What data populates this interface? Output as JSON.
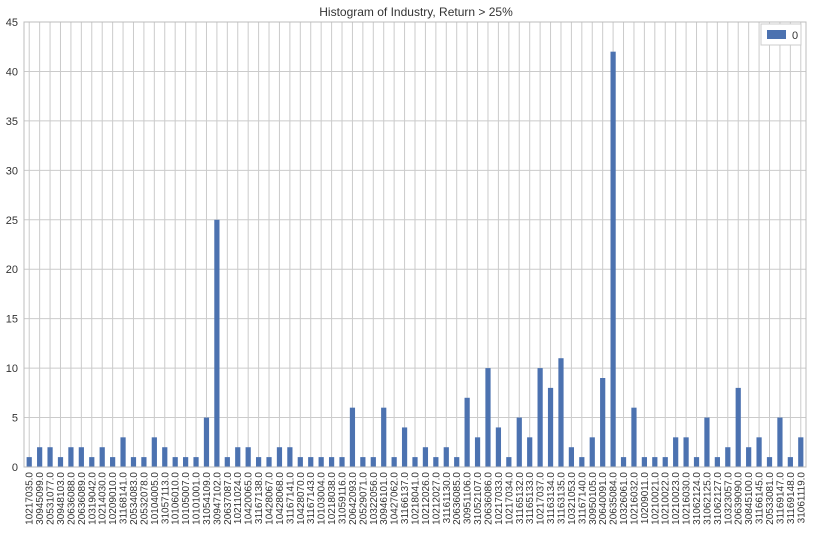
{
  "chart_data": {
    "type": "bar",
    "title": "Histogram of Industry, Return > 25%",
    "xlabel": "",
    "ylabel": "",
    "ylim": [
      0,
      45
    ],
    "yticks": [
      0,
      5,
      10,
      15,
      20,
      25,
      30,
      35,
      40,
      45
    ],
    "grid": true,
    "legend_position": "top-right",
    "categories": [
      "10217035.0",
      "30945099.0",
      "20531077.0",
      "30948103.0",
      "20636088.0",
      "20636089.0",
      "10319042.0",
      "10214030.0",
      "10209010.0",
      "31168141.0",
      "20534083.0",
      "20532078.0",
      "10104005.0",
      "31057113.0",
      "10106010.0",
      "10105007.0",
      "10101001.0",
      "31054109.0",
      "30947102.0",
      "20637087.0",
      "10211024.0",
      "10420065.0",
      "31167138.0",
      "10428067.0",
      "10428068.0",
      "31167141.0",
      "10428070.0",
      "31167143.0",
      "10103004.0",
      "10218038.0",
      "31059116.0",
      "20642093.0",
      "20529071.0",
      "10322056.0",
      "30946101.0",
      "10427062.0",
      "31166137.0",
      "10218041.0",
      "10212026.0",
      "10212027.0",
      "31161130.0",
      "20636085.0",
      "30951106.0",
      "31052107.0",
      "20636086.0",
      "10217033.0",
      "10217034.0",
      "31165132.0",
      "31165133.0",
      "10217037.0",
      "31163134.0",
      "31163135.0",
      "10321053.0",
      "31167140.0",
      "30950105.0",
      "20640091.0",
      "20635084.0",
      "10326061.0",
      "10216032.0",
      "10209011.0",
      "10210021.0",
      "10210022.0",
      "10210023.0",
      "10216030.0",
      "31062124.0",
      "31062125.0",
      "31062127.0",
      "10323057.0",
      "20639090.0",
      "30845100.0",
      "31166145.0",
      "20533081.0",
      "31169147.0",
      "31169148.0",
      "31061119.0"
    ],
    "series": [
      {
        "name": "0",
        "color": "#4c72b0",
        "values": [
          1,
          2,
          2,
          1,
          2,
          2,
          1,
          2,
          1,
          3,
          1,
          1,
          3,
          2,
          1,
          1,
          1,
          5,
          25,
          1,
          2,
          2,
          1,
          1,
          2,
          2,
          1,
          1,
          1,
          1,
          1,
          6,
          1,
          1,
          6,
          1,
          4,
          1,
          2,
          1,
          2,
          1,
          7,
          3,
          10,
          4,
          1,
          5,
          3,
          10,
          8,
          11,
          2,
          1,
          3,
          9,
          42,
          1,
          6,
          1,
          1,
          1,
          3,
          3,
          1,
          5,
          1,
          2,
          8,
          2,
          3,
          1,
          5,
          1,
          3
        ]
      }
    ],
    "colors": {
      "bar": "#4c72b0",
      "grid": "#cbcbcb",
      "axes_edge": "#bcbcbc",
      "text": "#333333"
    }
  }
}
